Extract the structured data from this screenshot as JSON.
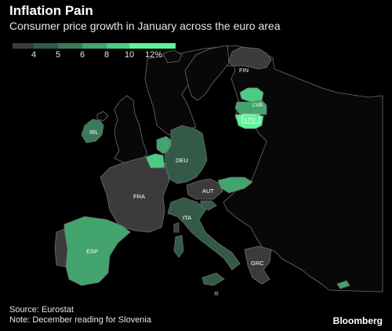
{
  "header": {
    "title": "Inflation Pain",
    "subtitle": "Consumer price growth in January across the euro area"
  },
  "legend": {
    "swatches": [
      "#3b3b3b",
      "#335a47",
      "#3a7a59",
      "#43a46d",
      "#4ccc82",
      "#5df49a"
    ],
    "labels": [
      "4",
      "5",
      "6",
      "8",
      "10",
      "12%"
    ]
  },
  "colors": {
    "background": "#000000",
    "non_euro_land": "#080808",
    "border": "#6e6e6e",
    "sea": "#000000"
  },
  "countries": [
    {
      "code": "FIN",
      "color": "#3b3b3b"
    },
    {
      "code": "LVA",
      "color": "#43a46d"
    },
    {
      "code": "LTU",
      "color": "#5df49a"
    },
    {
      "code": "EST",
      "color": "#4ccc82"
    },
    {
      "code": "IRL",
      "color": "#3a7a59"
    },
    {
      "code": "DEU",
      "color": "#335a47"
    },
    {
      "code": "NLD",
      "color": "#43a46d"
    },
    {
      "code": "BEL",
      "color": "#4ccc82"
    },
    {
      "code": "LUX",
      "color": "#335a47"
    },
    {
      "code": "FRA",
      "color": "#3b3b3b"
    },
    {
      "code": "AUT",
      "color": "#3b3b3b"
    },
    {
      "code": "SVK",
      "color": "#43a46d"
    },
    {
      "code": "SVN",
      "color": "#335a47"
    },
    {
      "code": "ITA",
      "color": "#335a47"
    },
    {
      "code": "ESP",
      "color": "#43a46d"
    },
    {
      "code": "PRT",
      "color": "#3b3b3b"
    },
    {
      "code": "GRC",
      "color": "#3b3b3b"
    },
    {
      "code": "CYP",
      "color": "#43a46d"
    },
    {
      "code": "MLT",
      "color": "#335a47"
    }
  ],
  "footer": {
    "source": "Source: Eurostat",
    "note": "Note: December reading for Slovenia",
    "brand": "Bloomberg"
  }
}
